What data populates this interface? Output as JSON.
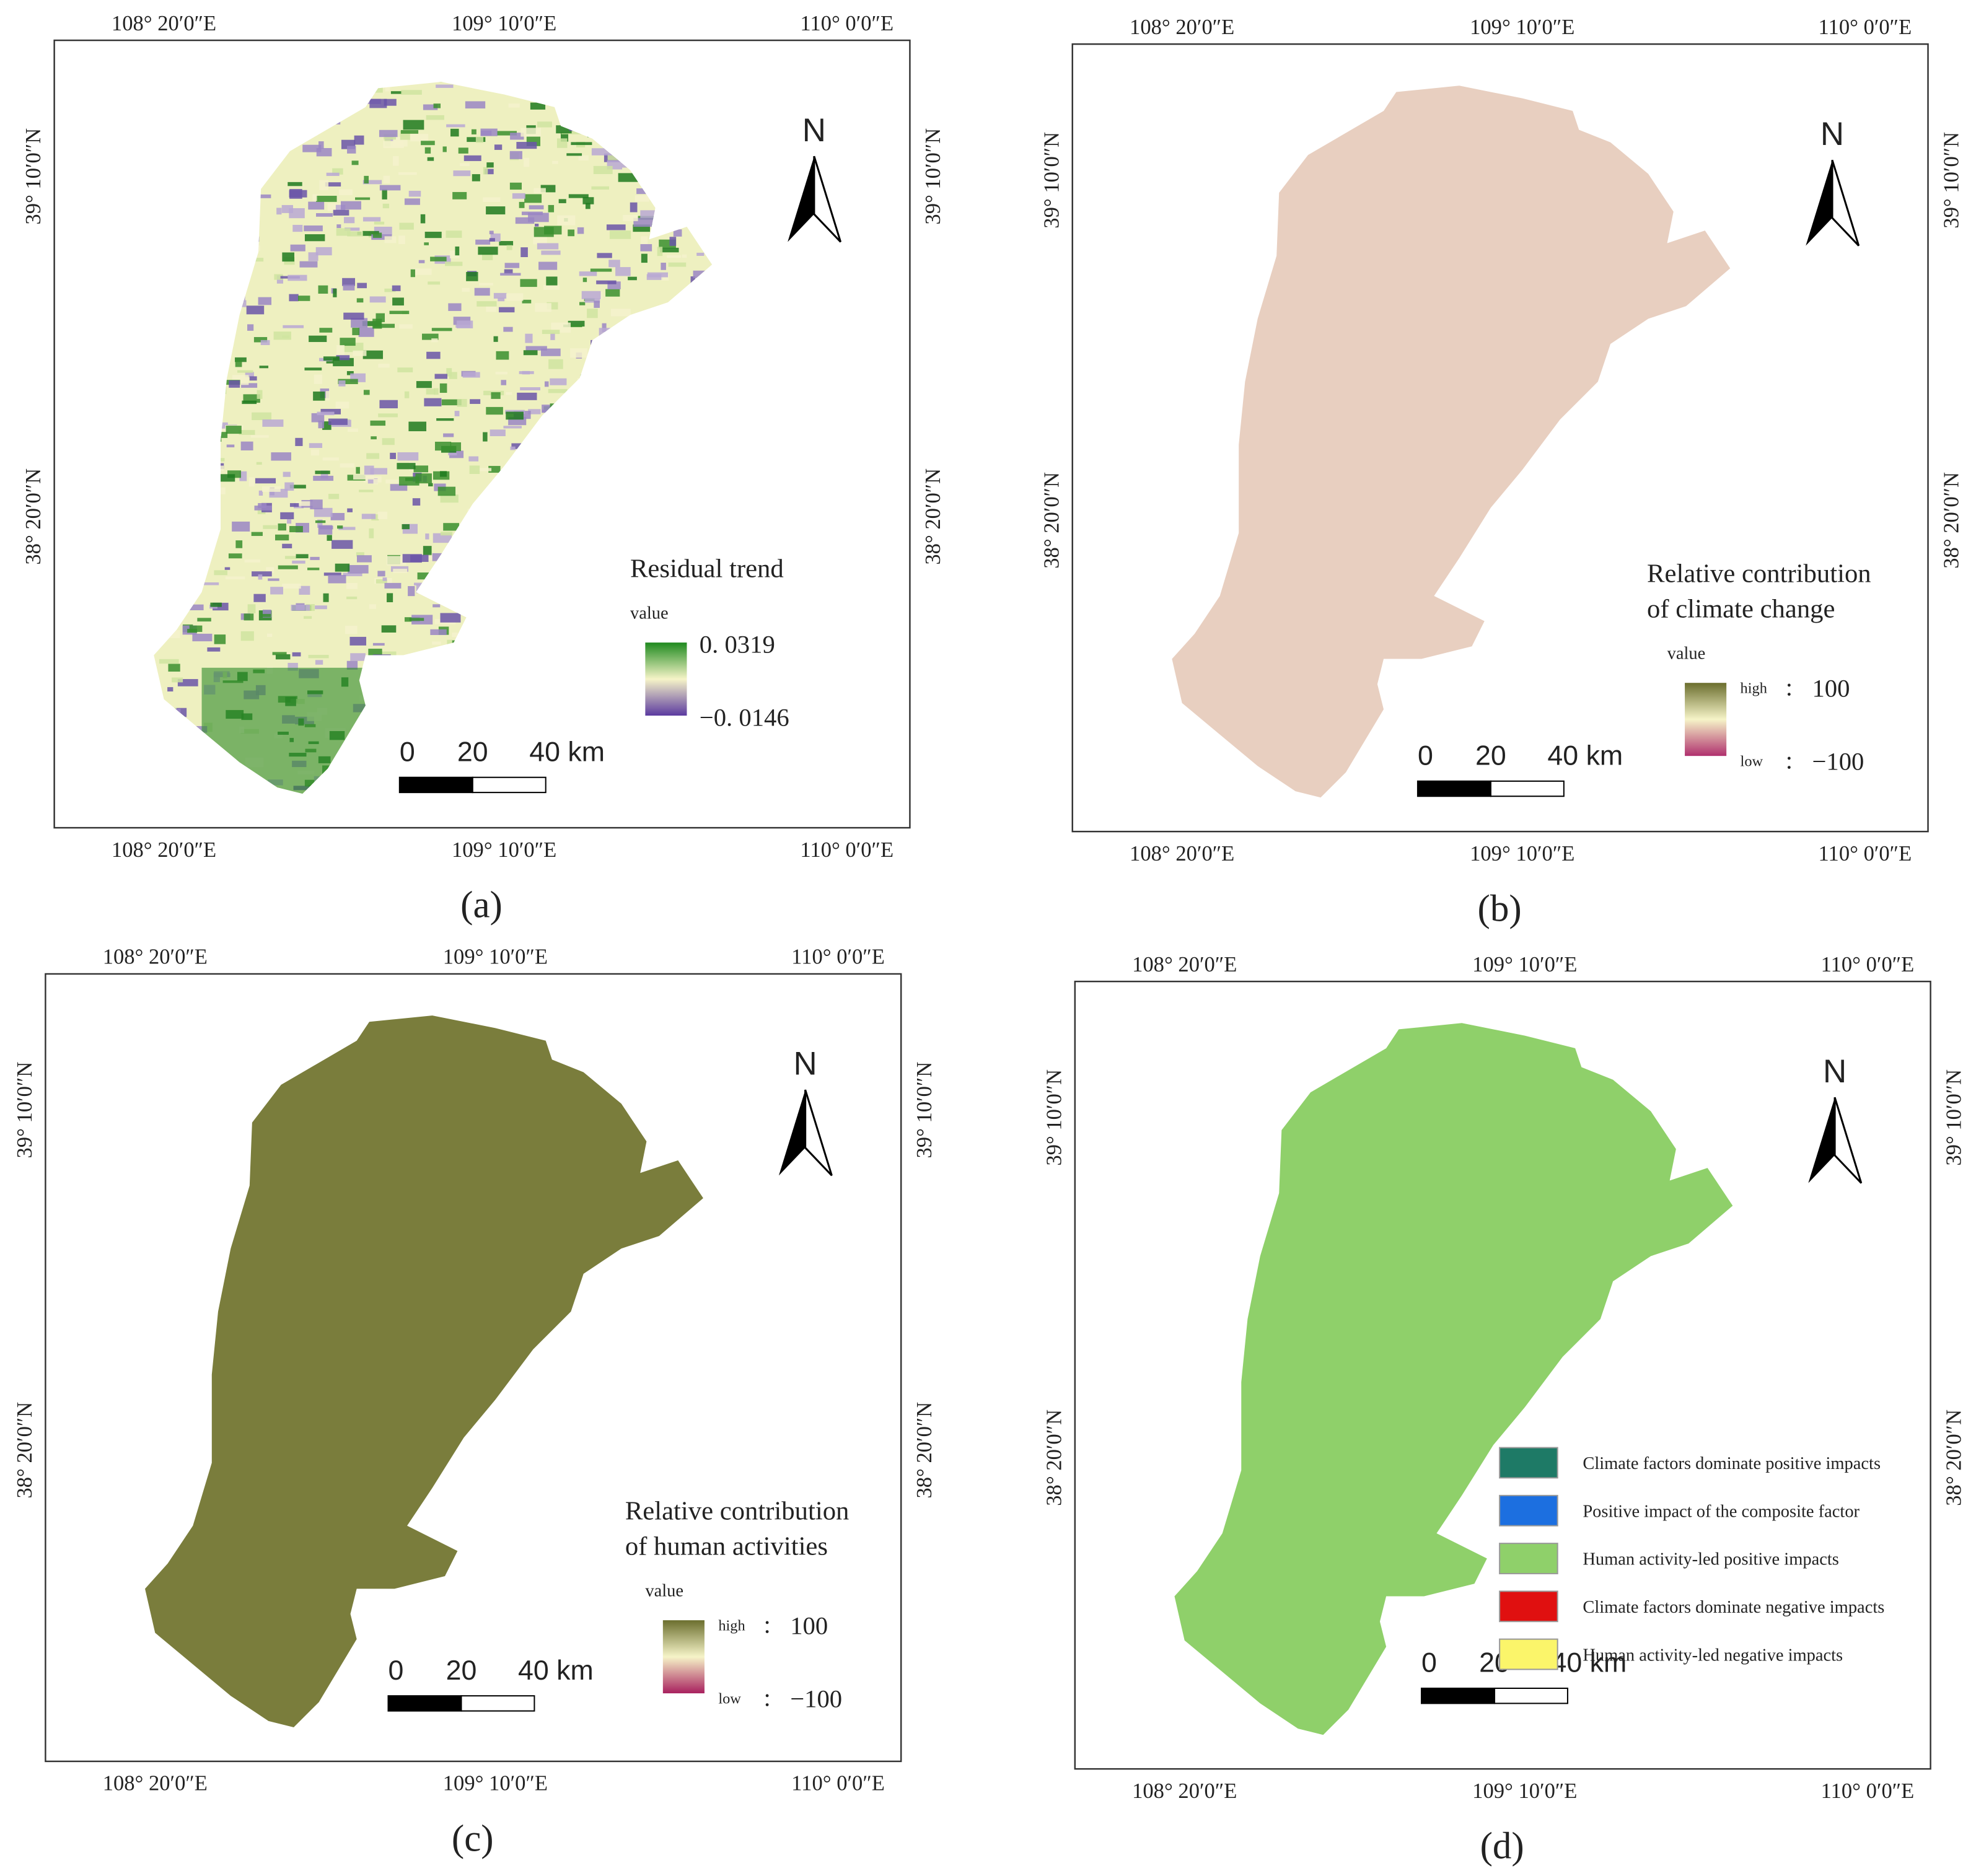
{
  "panels": [
    {
      "label": "(a)",
      "top_x_labels": [
        "108° 20′0″E",
        "109° 10′0″E",
        "110° 0′0″E"
      ],
      "bottom_x_labels": [
        "108° 20′0″E",
        "109° 10′0″E",
        "110° 0′0″E"
      ],
      "left_y_labels": [
        "39° 10′0″N",
        "38° 20′0″N"
      ],
      "right_y_labels": [
        "39° 10′0″N",
        "38° 20′0″N"
      ],
      "north": "N",
      "scale_bar": [
        "0",
        "20",
        "40 km"
      ],
      "legend": {
        "title": [
          "Residual trend"
        ],
        "subtitle": "value",
        "max_label": "0. 0319",
        "min_label": "−0. 0146"
      }
    },
    {
      "label": "(b)",
      "top_x_labels": [
        "108° 20′0″E",
        "109° 10′0″E",
        "110° 0′0″E"
      ],
      "bottom_x_labels": [
        "108° 20′0″E",
        "109° 10′0″E",
        "110° 0′0″E"
      ],
      "left_y_labels": [
        "39° 10′0″N",
        "38° 20′0″N"
      ],
      "right_y_labels": [
        "39° 10′0″N",
        "38° 20′0″N"
      ],
      "north": "N",
      "scale_bar": [
        "0",
        "20",
        "40 km"
      ],
      "legend": {
        "title": [
          "Relative contribution",
          "of climate change"
        ],
        "subtitle": "value",
        "high": "high",
        "low": "low",
        "separator": ":",
        "max_label": "100",
        "min_label": "−100"
      }
    },
    {
      "label": "(c)",
      "top_x_labels": [
        "108° 20′0″E",
        "109° 10′0″E",
        "110° 0′0″E"
      ],
      "bottom_x_labels": [
        "108° 20′0″E",
        "109° 10′0″E",
        "110° 0′0″E"
      ],
      "left_y_labels": [
        "39° 10′0″N",
        "38° 20′0″N"
      ],
      "right_y_labels": [
        "39° 10′0″N",
        "38° 20′0″N"
      ],
      "north": "N",
      "scale_bar": [
        "0",
        "20",
        "40 km"
      ],
      "legend": {
        "title": [
          "Relative contribution",
          "of human activities"
        ],
        "subtitle": "value",
        "high": "high",
        "low": "low",
        "separator": ":",
        "max_label": "100",
        "min_label": "−100"
      }
    },
    {
      "label": "(d)",
      "top_x_labels": [
        "108° 20′0″E",
        "109° 10′0″E",
        "110° 0′0″E"
      ],
      "bottom_x_labels": [
        "108° 20′0″E",
        "109° 10′0″E",
        "110° 0′0″E"
      ],
      "left_y_labels": [
        "39° 10′0″N",
        "38° 20′0″N"
      ],
      "right_y_labels": [
        "39° 10′0″N",
        "38° 20′0″N"
      ],
      "north": "N",
      "scale_bar": [
        "0",
        "20",
        "40 km"
      ],
      "legend": {
        "items": [
          {
            "label": "Climate factors dominate positive impacts",
            "color": "#1e7a66"
          },
          {
            "label": "Positive impact of the composite factor",
            "color": "#1c6fe0"
          },
          {
            "label": "Human activity-led positive impacts",
            "color": "#8fd06a"
          },
          {
            "label": "Climate factors dominate negative impacts",
            "color": "#e01010"
          },
          {
            "label": "Human activity-led negative impacts",
            "color": "#fbf56a"
          }
        ]
      }
    }
  ]
}
